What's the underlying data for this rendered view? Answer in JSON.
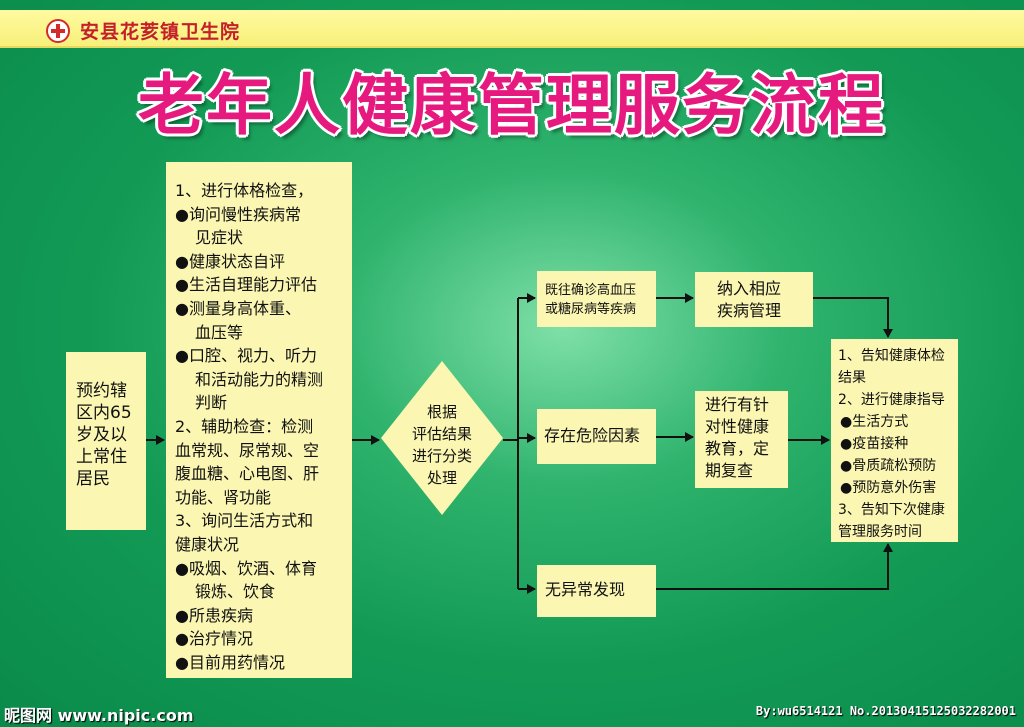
{
  "header": {
    "hospital": "安县花荄镇卫生院"
  },
  "title": "老年人健康管理服务流程",
  "residents": [
    "预约辖",
    "区内65",
    "岁及以",
    "上常住",
    "居民"
  ],
  "checkup": [
    {
      "text": "1、进行体格检查，",
      "indent": false
    },
    {
      "text": "●询问慢性疾病常",
      "indent": false
    },
    {
      "text": "见症状",
      "indent": true
    },
    {
      "text": "●健康状态自评",
      "indent": false
    },
    {
      "text": "●生活自理能力评估",
      "indent": false
    },
    {
      "text": "●测量身高体重、",
      "indent": false
    },
    {
      "text": "血压等",
      "indent": true
    },
    {
      "text": "●口腔、视力、听力",
      "indent": false
    },
    {
      "text": "和活动能力的精测",
      "indent": true
    },
    {
      "text": "判断",
      "indent": true
    },
    {
      "text": "2、辅助检查：检测",
      "indent": false
    },
    {
      "text": "血常规、尿常规、空",
      "indent": false
    },
    {
      "text": "腹血糖、心电图、肝",
      "indent": false
    },
    {
      "text": "功能、肾功能",
      "indent": false
    },
    {
      "text": "3、询问生活方式和",
      "indent": false
    },
    {
      "text": "健康状况",
      "indent": false
    },
    {
      "text": "●吸烟、饮酒、体育",
      "indent": false
    },
    {
      "text": "锻炼、饮食",
      "indent": true
    },
    {
      "text": "●所患疾病",
      "indent": false
    },
    {
      "text": "●治疗情况",
      "indent": false
    },
    {
      "text": "●目前用药情况",
      "indent": false
    }
  ],
  "decision": [
    "根据",
    "评估结果",
    "进行分类",
    "处理"
  ],
  "branches": {
    "history": [
      "既往确诊高血压",
      "或糖尿病等疾病"
    ],
    "risk": "存在危险因素",
    "none": "无异常发现"
  },
  "management": [
    "纳入相应",
    "疾病管理"
  ],
  "education": [
    "进行有针",
    "对性健康",
    "教育，定",
    "期复查"
  ],
  "notify": [
    {
      "text": "1、告知健康体检",
      "indent": false
    },
    {
      "text": "结果",
      "indent": false
    },
    {
      "text": "2、进行健康指导",
      "indent": false
    },
    {
      "text": "●生活方式",
      "indent": true
    },
    {
      "text": "●疫苗接种",
      "indent": true
    },
    {
      "text": "●骨质疏松预防",
      "indent": true
    },
    {
      "text": "●预防意外伤害",
      "indent": true
    },
    {
      "text": "3、告知下次健康",
      "indent": false
    },
    {
      "text": "管理服务时间",
      "indent": false
    }
  ],
  "footer": {
    "left": "昵图网 www.nipic.com",
    "right": "By:wu6514121 No.20130415125032282001"
  }
}
